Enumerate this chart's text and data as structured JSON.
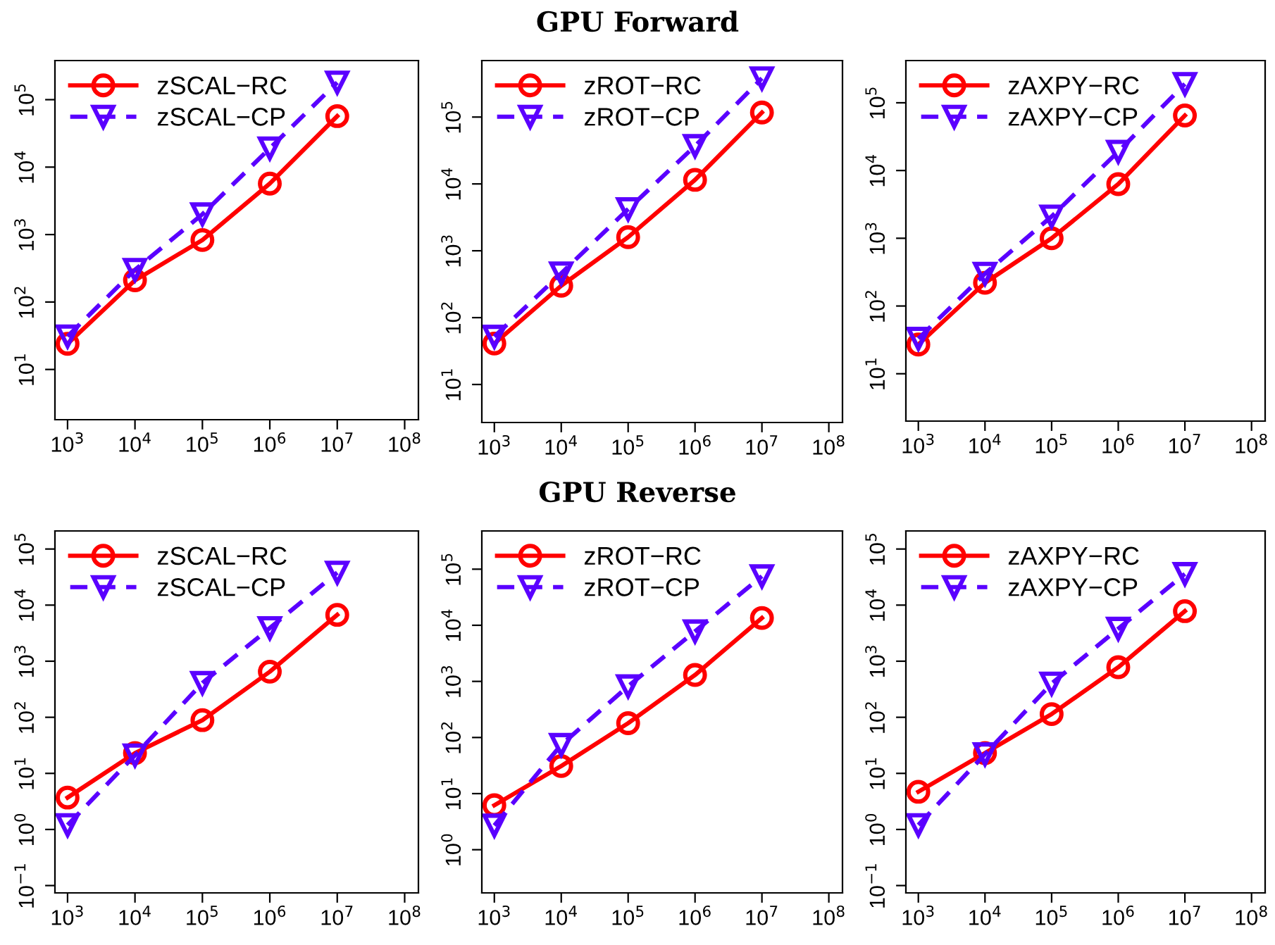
{
  "chart_data": [
    {
      "type": "line",
      "log": "xy",
      "legend": "top left",
      "grid": false,
      "x": [
        1000,
        10000,
        100000,
        1000000,
        10000000
      ],
      "xlim": [
        650,
        160000000
      ],
      "ylim": [
        1.8,
        380000
      ],
      "xticks": [
        {
          "value": 1000,
          "label": "10$^{3}$"
        },
        {
          "value": 10000,
          "label": "10$^{4}$"
        },
        {
          "value": 100000,
          "label": "10$^{5}$"
        },
        {
          "value": 1000000,
          "label": "10$^{6}$"
        },
        {
          "value": 10000000,
          "label": "10$^{7}$"
        },
        {
          "value": 100000000,
          "label": "10$^{8}$"
        }
      ],
      "yticks": [
        {
          "value": 10,
          "label": "10$^{1}$"
        },
        {
          "value": 100,
          "label": "10$^{2}$"
        },
        {
          "value": 1000,
          "label": "10$^{3}$"
        },
        {
          "value": 10000,
          "label": "10$^{4}$"
        },
        {
          "value": 100000,
          "label": "10$^{5}$"
        }
      ],
      "series": [
        {
          "name": "zSCAL−RC",
          "color": "#ff0000",
          "marker": "circle",
          "line_style": "solid",
          "values": [
            24,
            210,
            830,
            5700,
            57000
          ]
        },
        {
          "name": "zSCAL−CP",
          "color": "#5a00ff",
          "marker": "triangle",
          "line_style": "dashed",
          "values": [
            31,
            300,
            2000,
            19000,
            180000
          ]
        }
      ]
    },
    {
      "type": "line",
      "log": "xy",
      "legend": "top left",
      "grid": false,
      "title": "GPU Forward",
      "x": [
        1000,
        10000,
        100000,
        1000000,
        10000000
      ],
      "xlim": [
        650,
        160000000
      ],
      "ylim": [
        2.7,
        700000
      ],
      "xticks": [
        {
          "value": 1000,
          "label": "10$^{3}$"
        },
        {
          "value": 10000,
          "label": "10$^{4}$"
        },
        {
          "value": 100000,
          "label": "10$^{5}$"
        },
        {
          "value": 1000000,
          "label": "10$^{6}$"
        },
        {
          "value": 10000000,
          "label": "10$^{7}$"
        },
        {
          "value": 100000000,
          "label": "10$^{8}$"
        }
      ],
      "yticks": [
        {
          "value": 10,
          "label": "10$^{1}$"
        },
        {
          "value": 100,
          "label": "10$^{2}$"
        },
        {
          "value": 1000,
          "label": "10$^{3}$"
        },
        {
          "value": 10000,
          "label": "10$^{4}$"
        },
        {
          "value": 100000,
          "label": "10$^{5}$"
        }
      ],
      "series": [
        {
          "name": "zROT−RC",
          "color": "#ff0000",
          "marker": "circle",
          "line_style": "solid",
          "values": [
            41,
            300,
            1600,
            11500,
            117000
          ]
        },
        {
          "name": "zROT−CP",
          "color": "#5a00ff",
          "marker": "triangle",
          "line_style": "dashed",
          "values": [
            52,
            460,
            4200,
            37000,
            380000
          ]
        }
      ]
    },
    {
      "type": "line",
      "log": "xy",
      "legend": "top left",
      "grid": false,
      "x": [
        1000,
        10000,
        100000,
        1000000,
        10000000
      ],
      "xlim": [
        650,
        160000000
      ],
      "ylim": [
        2,
        420000
      ],
      "xticks": [
        {
          "value": 1000,
          "label": "10$^{3}$"
        },
        {
          "value": 10000,
          "label": "10$^{4}$"
        },
        {
          "value": 100000,
          "label": "10$^{5}$"
        },
        {
          "value": 1000000,
          "label": "10$^{6}$"
        },
        {
          "value": 10000000,
          "label": "10$^{7}$"
        },
        {
          "value": 100000000,
          "label": "10$^{8}$"
        }
      ],
      "yticks": [
        {
          "value": 10,
          "label": "10$^{1}$"
        },
        {
          "value": 100,
          "label": "10$^{2}$"
        },
        {
          "value": 1000,
          "label": "10$^{3}$"
        },
        {
          "value": 10000,
          "label": "10$^{4}$"
        },
        {
          "value": 100000,
          "label": "10$^{5}$"
        }
      ],
      "series": [
        {
          "name": "zAXPY−RC",
          "color": "#ff0000",
          "marker": "circle",
          "line_style": "solid",
          "values": [
            27,
            220,
            1000,
            6300,
            65000
          ]
        },
        {
          "name": "zAXPY−CP",
          "color": "#5a00ff",
          "marker": "triangle",
          "line_style": "dashed",
          "values": [
            33,
            300,
            2100,
            19000,
            190000
          ]
        }
      ]
    },
    {
      "type": "line",
      "log": "xy",
      "legend": "top left",
      "grid": false,
      "x": [
        1000,
        10000,
        100000,
        1000000,
        10000000
      ],
      "xlim": [
        650,
        160000000
      ],
      "ylim": [
        0.074,
        210000
      ],
      "xticks": [
        {
          "value": 1000,
          "label": "10$^{3}$"
        },
        {
          "value": 10000,
          "label": "10$^{4}$"
        },
        {
          "value": 100000,
          "label": "10$^{5}$"
        },
        {
          "value": 1000000,
          "label": "10$^{6}$"
        },
        {
          "value": 10000000,
          "label": "10$^{7}$"
        },
        {
          "value": 100000000,
          "label": "10$^{8}$"
        }
      ],
      "yticks": [
        {
          "value": 0.1,
          "label": "10$^{−1}$"
        },
        {
          "value": 1,
          "label": "10$^{0}$"
        },
        {
          "value": 10,
          "label": "10$^{1}$"
        },
        {
          "value": 100,
          "label": "10$^{2}$"
        },
        {
          "value": 1000,
          "label": "10$^{3}$"
        },
        {
          "value": 10000,
          "label": "10$^{4}$"
        },
        {
          "value": 100000,
          "label": "10$^{5}$"
        }
      ],
      "series": [
        {
          "name": "zSCAL−RC",
          "color": "#ff0000",
          "marker": "circle",
          "line_style": "solid",
          "values": [
            3.7,
            23,
            89,
            650,
            6700
          ]
        },
        {
          "name": "zSCAL−CP",
          "color": "#5a00ff",
          "marker": "triangle",
          "line_style": "dashed",
          "values": [
            1.2,
            21,
            410,
            3900,
            38000
          ]
        }
      ]
    },
    {
      "type": "line",
      "log": "xy",
      "legend": "top left",
      "grid": false,
      "title": "GPU Reverse",
      "x": [
        1000,
        10000,
        100000,
        1000000,
        10000000
      ],
      "xlim": [
        650,
        160000000
      ],
      "ylim": [
        0.17,
        480000
      ],
      "xticks": [
        {
          "value": 1000,
          "label": "10$^{3}$"
        },
        {
          "value": 10000,
          "label": "10$^{4}$"
        },
        {
          "value": 100000,
          "label": "10$^{5}$"
        },
        {
          "value": 1000000,
          "label": "10$^{6}$"
        },
        {
          "value": 10000000,
          "label": "10$^{7}$"
        },
        {
          "value": 100000000,
          "label": "10$^{8}$"
        }
      ],
      "yticks": [
        {
          "value": 1,
          "label": "10$^{0}$"
        },
        {
          "value": 10,
          "label": "10$^{1}$"
        },
        {
          "value": 100,
          "label": "10$^{2}$"
        },
        {
          "value": 1000,
          "label": "10$^{3}$"
        },
        {
          "value": 10000,
          "label": "10$^{4}$"
        },
        {
          "value": 100000,
          "label": "10$^{5}$"
        }
      ],
      "series": [
        {
          "name": "zROT−RC",
          "color": "#ff0000",
          "marker": "circle",
          "line_style": "solid",
          "values": [
            6.2,
            31,
            180,
            1300,
            13500
          ]
        },
        {
          "name": "zROT−CP",
          "color": "#5a00ff",
          "marker": "triangle",
          "line_style": "dashed",
          "values": [
            2.7,
            74,
            820,
            7800,
            75000
          ]
        }
      ]
    },
    {
      "type": "line",
      "log": "xy",
      "legend": "top left",
      "grid": false,
      "x": [
        1000,
        10000,
        100000,
        1000000,
        10000000
      ],
      "xlim": [
        650,
        160000000
      ],
      "ylim": [
        0.074,
        210000
      ],
      "xticks": [
        {
          "value": 1000,
          "label": "10$^{3}$"
        },
        {
          "value": 10000,
          "label": "10$^{4}$"
        },
        {
          "value": 100000,
          "label": "10$^{5}$"
        },
        {
          "value": 1000000,
          "label": "10$^{6}$"
        },
        {
          "value": 10000000,
          "label": "10$^{7}$"
        },
        {
          "value": 100000000,
          "label": "10$^{8}$"
        }
      ],
      "yticks": [
        {
          "value": 0.1,
          "label": "10$^{−1}$"
        },
        {
          "value": 1,
          "label": "10$^{0}$"
        },
        {
          "value": 10,
          "label": "10$^{1}$"
        },
        {
          "value": 100,
          "label": "10$^{2}$"
        },
        {
          "value": 1000,
          "label": "10$^{3}$"
        },
        {
          "value": 10000,
          "label": "10$^{4}$"
        },
        {
          "value": 100000,
          "label": "10$^{5}$"
        }
      ],
      "series": [
        {
          "name": "zAXPY−RC",
          "color": "#ff0000",
          "marker": "circle",
          "line_style": "solid",
          "values": [
            4.7,
            23,
            114,
            780,
            7800
          ]
        },
        {
          "name": "zAXPY−CP",
          "color": "#5a00ff",
          "marker": "triangle",
          "line_style": "dashed",
          "values": [
            1.2,
            22,
            400,
            3800,
            36000
          ]
        }
      ]
    }
  ]
}
